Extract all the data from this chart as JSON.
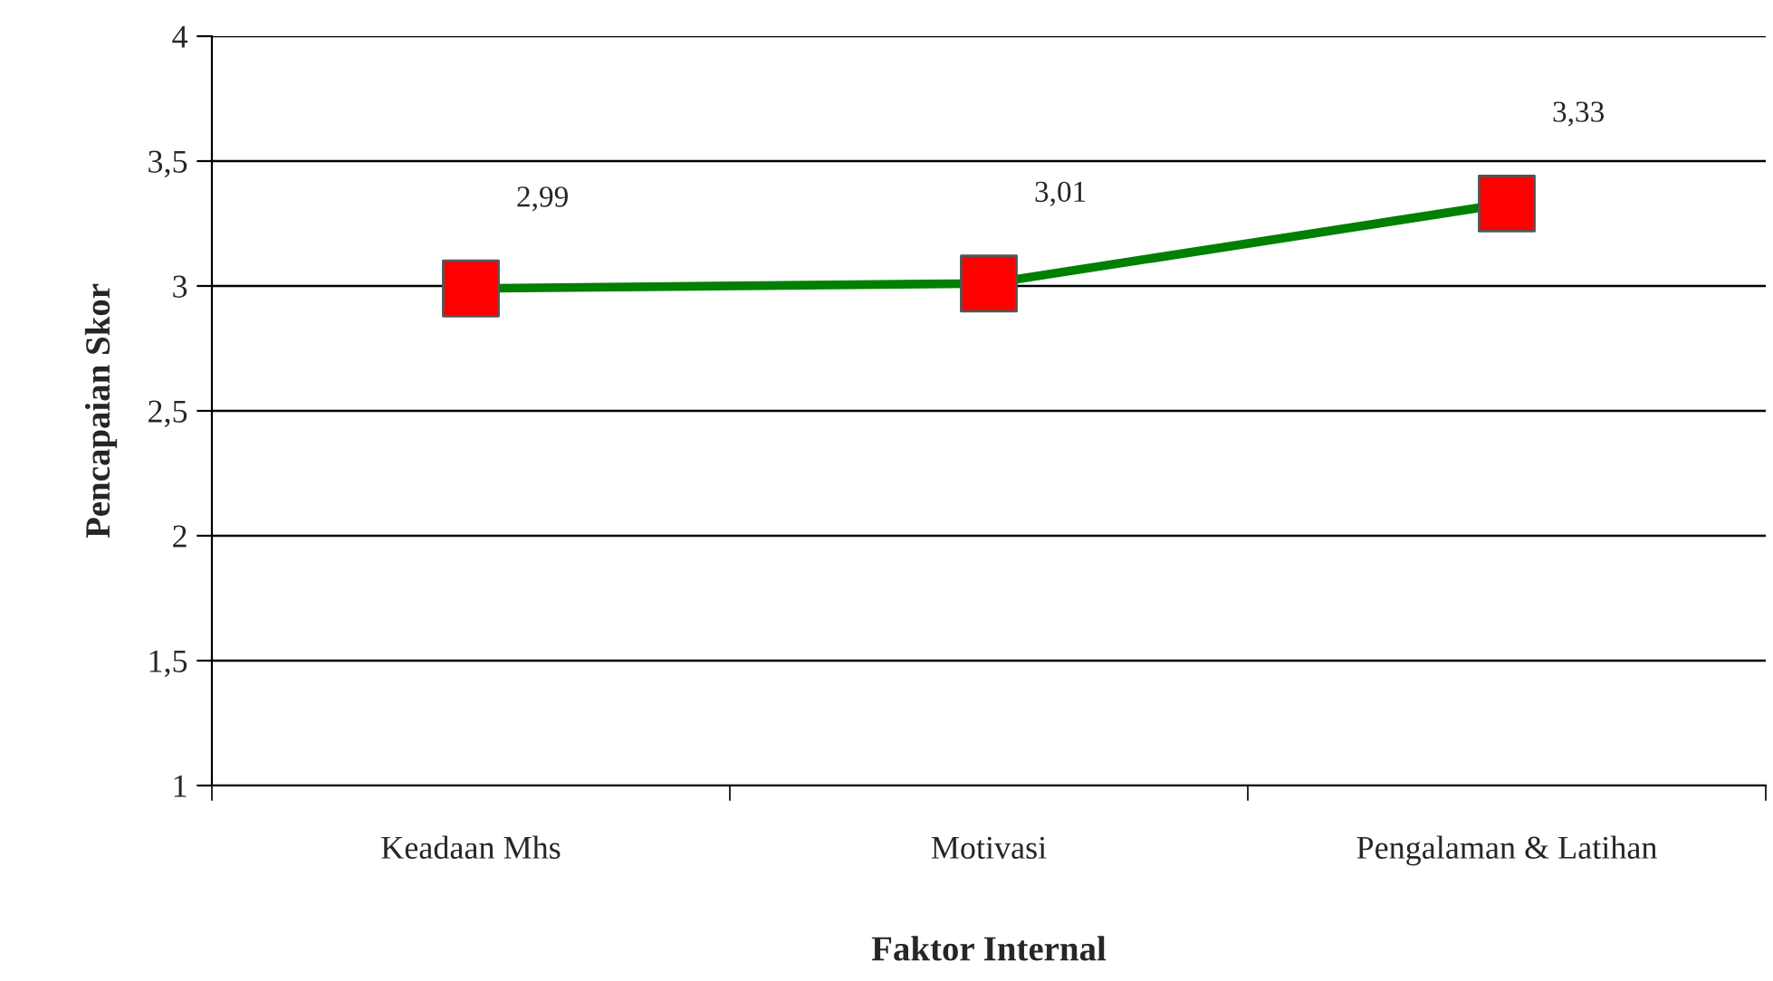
{
  "chart_data": {
    "type": "line",
    "xlabel": "Faktor Internal",
    "ylabel": "Pencapaian Skor",
    "categories": [
      "Keadaan Mhs",
      "Motivasi",
      "Pengalaman & Latihan"
    ],
    "series": [
      {
        "color": "#008000",
        "values": [
          2.99,
          3.01,
          3.33
        ],
        "value_labels": [
          "2,99",
          "3,01",
          "3,33"
        ],
        "colors": [
          "#ff0000",
          "#ff0000",
          "#ff0000"
        ]
      }
    ],
    "ylim": [
      1,
      4
    ],
    "yticks": [
      1,
      {
        "value": 1.5,
        "label": "1,5"
      },
      2,
      {
        "value": 2.5,
        "label": "2,5"
      },
      3,
      {
        "value": 3.5,
        "label": "3,5"
      },
      4
    ],
    "grid": "y",
    "marker": "square",
    "line_style": "solid",
    "legend": false
  }
}
